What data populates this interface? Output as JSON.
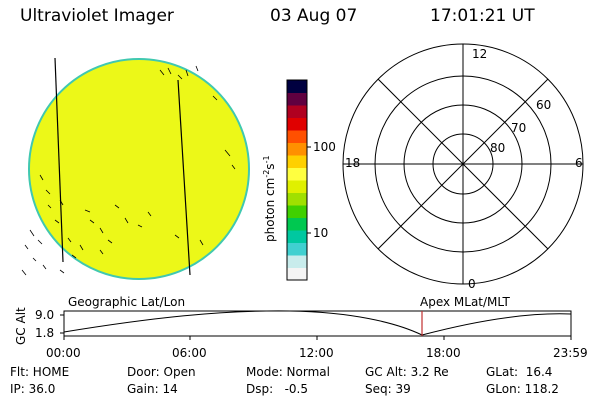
{
  "header": {
    "instrument": "Ultraviolet Imager",
    "date": "03 Aug 07",
    "time": "17:01:21 UT"
  },
  "colorbar": {
    "label_unit": "photon cm",
    "label_exp1": "-2",
    "label_s": "s",
    "label_exp2": "-1",
    "tick_100": "100",
    "tick_10": "10",
    "colors": [
      "#f4f4f4",
      "#c8ecec",
      "#40d0d0",
      "#00c8a0",
      "#00c850",
      "#40d000",
      "#a0e000",
      "#e0f000",
      "#ffff40",
      "#ffd000",
      "#ff9000",
      "#ff5000",
      "#e00000",
      "#b00020",
      "#600040",
      "#000040"
    ]
  },
  "polar": {
    "mlt_12": "12",
    "mlt_18": "18",
    "mlt_6": "6",
    "mlt_0": "0",
    "lat_60": "60",
    "lat_70": "70",
    "lat_80": "80"
  },
  "timeline": {
    "left_label": "Geographic Lat/Lon",
    "right_label": "Apex MLat/MLT",
    "axis_title": "GC Alt",
    "y_top": "9.0",
    "y_bottom": "1.8",
    "times": [
      "00:00",
      "06:00",
      "12:00",
      "18:00",
      "23:59"
    ]
  },
  "info": {
    "flt": "Flt: HOME",
    "ip": "IP: 36.0",
    "door": "Door: Open",
    "gain": "Gain: 14",
    "mode": "Mode: Normal",
    "dsp": "Dsp:   -0.5",
    "gcalt": "GC Alt: 3.2 Re",
    "seq": "Seq: 39",
    "glat": "GLat:  16.4",
    "glon": "GLon: 118.2"
  },
  "colors": {
    "disk_fill": "#ecf818",
    "disk_edge": "#40c8b0",
    "marker": "#c03030"
  }
}
